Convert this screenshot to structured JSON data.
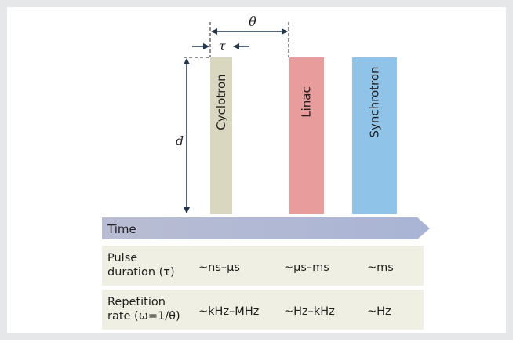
{
  "bars": [
    {
      "label": "Cyclotron",
      "color": "#d9d7c0"
    },
    {
      "label": "Linac",
      "color": "#e89c9c"
    },
    {
      "label": "Synchrotron",
      "color": "#8fc4e8"
    }
  ],
  "symbols": {
    "d": "d",
    "theta": "θ",
    "tau": "τ"
  },
  "axis_label": "Time",
  "table": {
    "rows": [
      {
        "header": [
          "Pulse",
          "duration (τ)"
        ],
        "cells": [
          "~ns–µs",
          "~µs–ms",
          "~ms"
        ]
      },
      {
        "header": [
          "Repetition",
          "rate (ω=1/θ)"
        ],
        "cells": [
          "~kHz–MHz",
          "~Hz–kHz",
          "~Hz"
        ]
      }
    ]
  }
}
